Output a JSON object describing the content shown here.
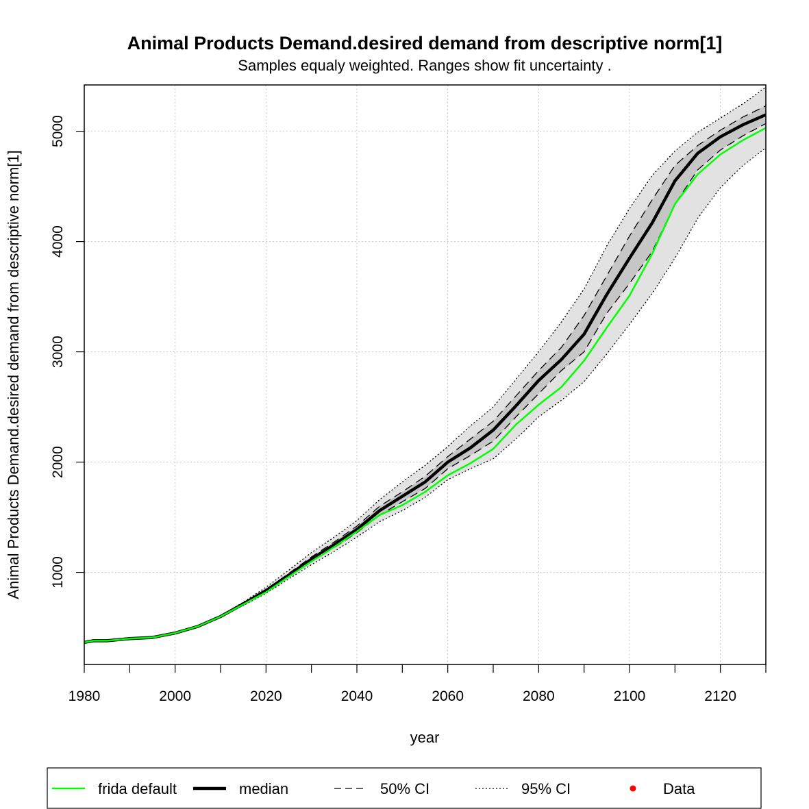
{
  "chart_data": {
    "type": "line",
    "title": "Animal Products Demand.desired demand from descriptive norm[1]",
    "subtitle": "Samples equaly weighted. Ranges show  fit uncertainty .",
    "xlabel": "year",
    "ylabel": "Animal Products Demand.desired demand from descriptive norm[1]",
    "xlim": [
      1980,
      2130
    ],
    "ylim": [
      165,
      5420
    ],
    "x_ticks": [
      1980,
      2000,
      2020,
      2040,
      2060,
      2080,
      2100,
      2120
    ],
    "y_ticks": [
      1000,
      2000,
      3000,
      4000,
      5000
    ],
    "grid": true,
    "legend_position": "bottom",
    "legend": [
      {
        "label": "frida default",
        "style": "green-solid"
      },
      {
        "label": "median",
        "style": "black-thick"
      },
      {
        "label": "50% CI",
        "style": "dashed"
      },
      {
        "label": "95% CI",
        "style": "dotted"
      },
      {
        "label": "Data",
        "style": "red-point"
      }
    ],
    "x": [
      1980,
      1982,
      1985,
      1990,
      1995,
      2000,
      2005,
      2010,
      2015,
      2020,
      2025,
      2030,
      2035,
      2040,
      2045,
      2050,
      2055,
      2060,
      2065,
      2070,
      2075,
      2080,
      2085,
      2090,
      2095,
      2100,
      2105,
      2110,
      2115,
      2120,
      2125,
      2130
    ],
    "series": [
      {
        "name": "frida default",
        "color": "#00ff00",
        "values": [
          365,
          380,
          380,
          400,
          410,
          450,
          510,
          600,
          710,
          820,
          960,
          1100,
          1230,
          1370,
          1520,
          1610,
          1730,
          1880,
          1990,
          2120,
          2340,
          2520,
          2680,
          2920,
          3220,
          3510,
          3890,
          4340,
          4610,
          4790,
          4920,
          5030
        ]
      },
      {
        "name": "median",
        "color": "#000000",
        "values": [
          365,
          380,
          380,
          400,
          410,
          450,
          510,
          600,
          715,
          835,
          975,
          1120,
          1250,
          1390,
          1560,
          1690,
          1820,
          2000,
          2130,
          2290,
          2510,
          2740,
          2930,
          3160,
          3520,
          3850,
          4170,
          4550,
          4800,
          4950,
          5060,
          5150
        ]
      },
      {
        "name": "50% CI upper",
        "values": [
          365,
          380,
          380,
          400,
          410,
          450,
          510,
          600,
          720,
          845,
          990,
          1140,
          1275,
          1420,
          1600,
          1730,
          1870,
          2050,
          2210,
          2370,
          2600,
          2830,
          3040,
          3330,
          3690,
          4050,
          4380,
          4690,
          4870,
          5010,
          5130,
          5230
        ]
      },
      {
        "name": "50% CI lower",
        "values": [
          365,
          380,
          380,
          400,
          410,
          450,
          510,
          600,
          710,
          825,
          960,
          1100,
          1225,
          1360,
          1520,
          1640,
          1760,
          1940,
          2060,
          2190,
          2410,
          2620,
          2830,
          3000,
          3350,
          3620,
          3910,
          4340,
          4650,
          4830,
          4960,
          5070
        ]
      },
      {
        "name": "95% CI upper",
        "values": [
          365,
          380,
          380,
          400,
          410,
          450,
          510,
          605,
          730,
          865,
          1020,
          1180,
          1320,
          1470,
          1660,
          1820,
          1970,
          2140,
          2330,
          2500,
          2750,
          3000,
          3270,
          3570,
          3960,
          4300,
          4600,
          4820,
          4990,
          5120,
          5250,
          5400
        ]
      },
      {
        "name": "95% CI lower",
        "values": [
          365,
          380,
          380,
          400,
          410,
          450,
          505,
          595,
          700,
          810,
          940,
          1070,
          1190,
          1320,
          1460,
          1560,
          1680,
          1840,
          1940,
          2030,
          2210,
          2410,
          2560,
          2730,
          2980,
          3250,
          3530,
          3850,
          4210,
          4490,
          4690,
          4850
        ]
      }
    ]
  }
}
